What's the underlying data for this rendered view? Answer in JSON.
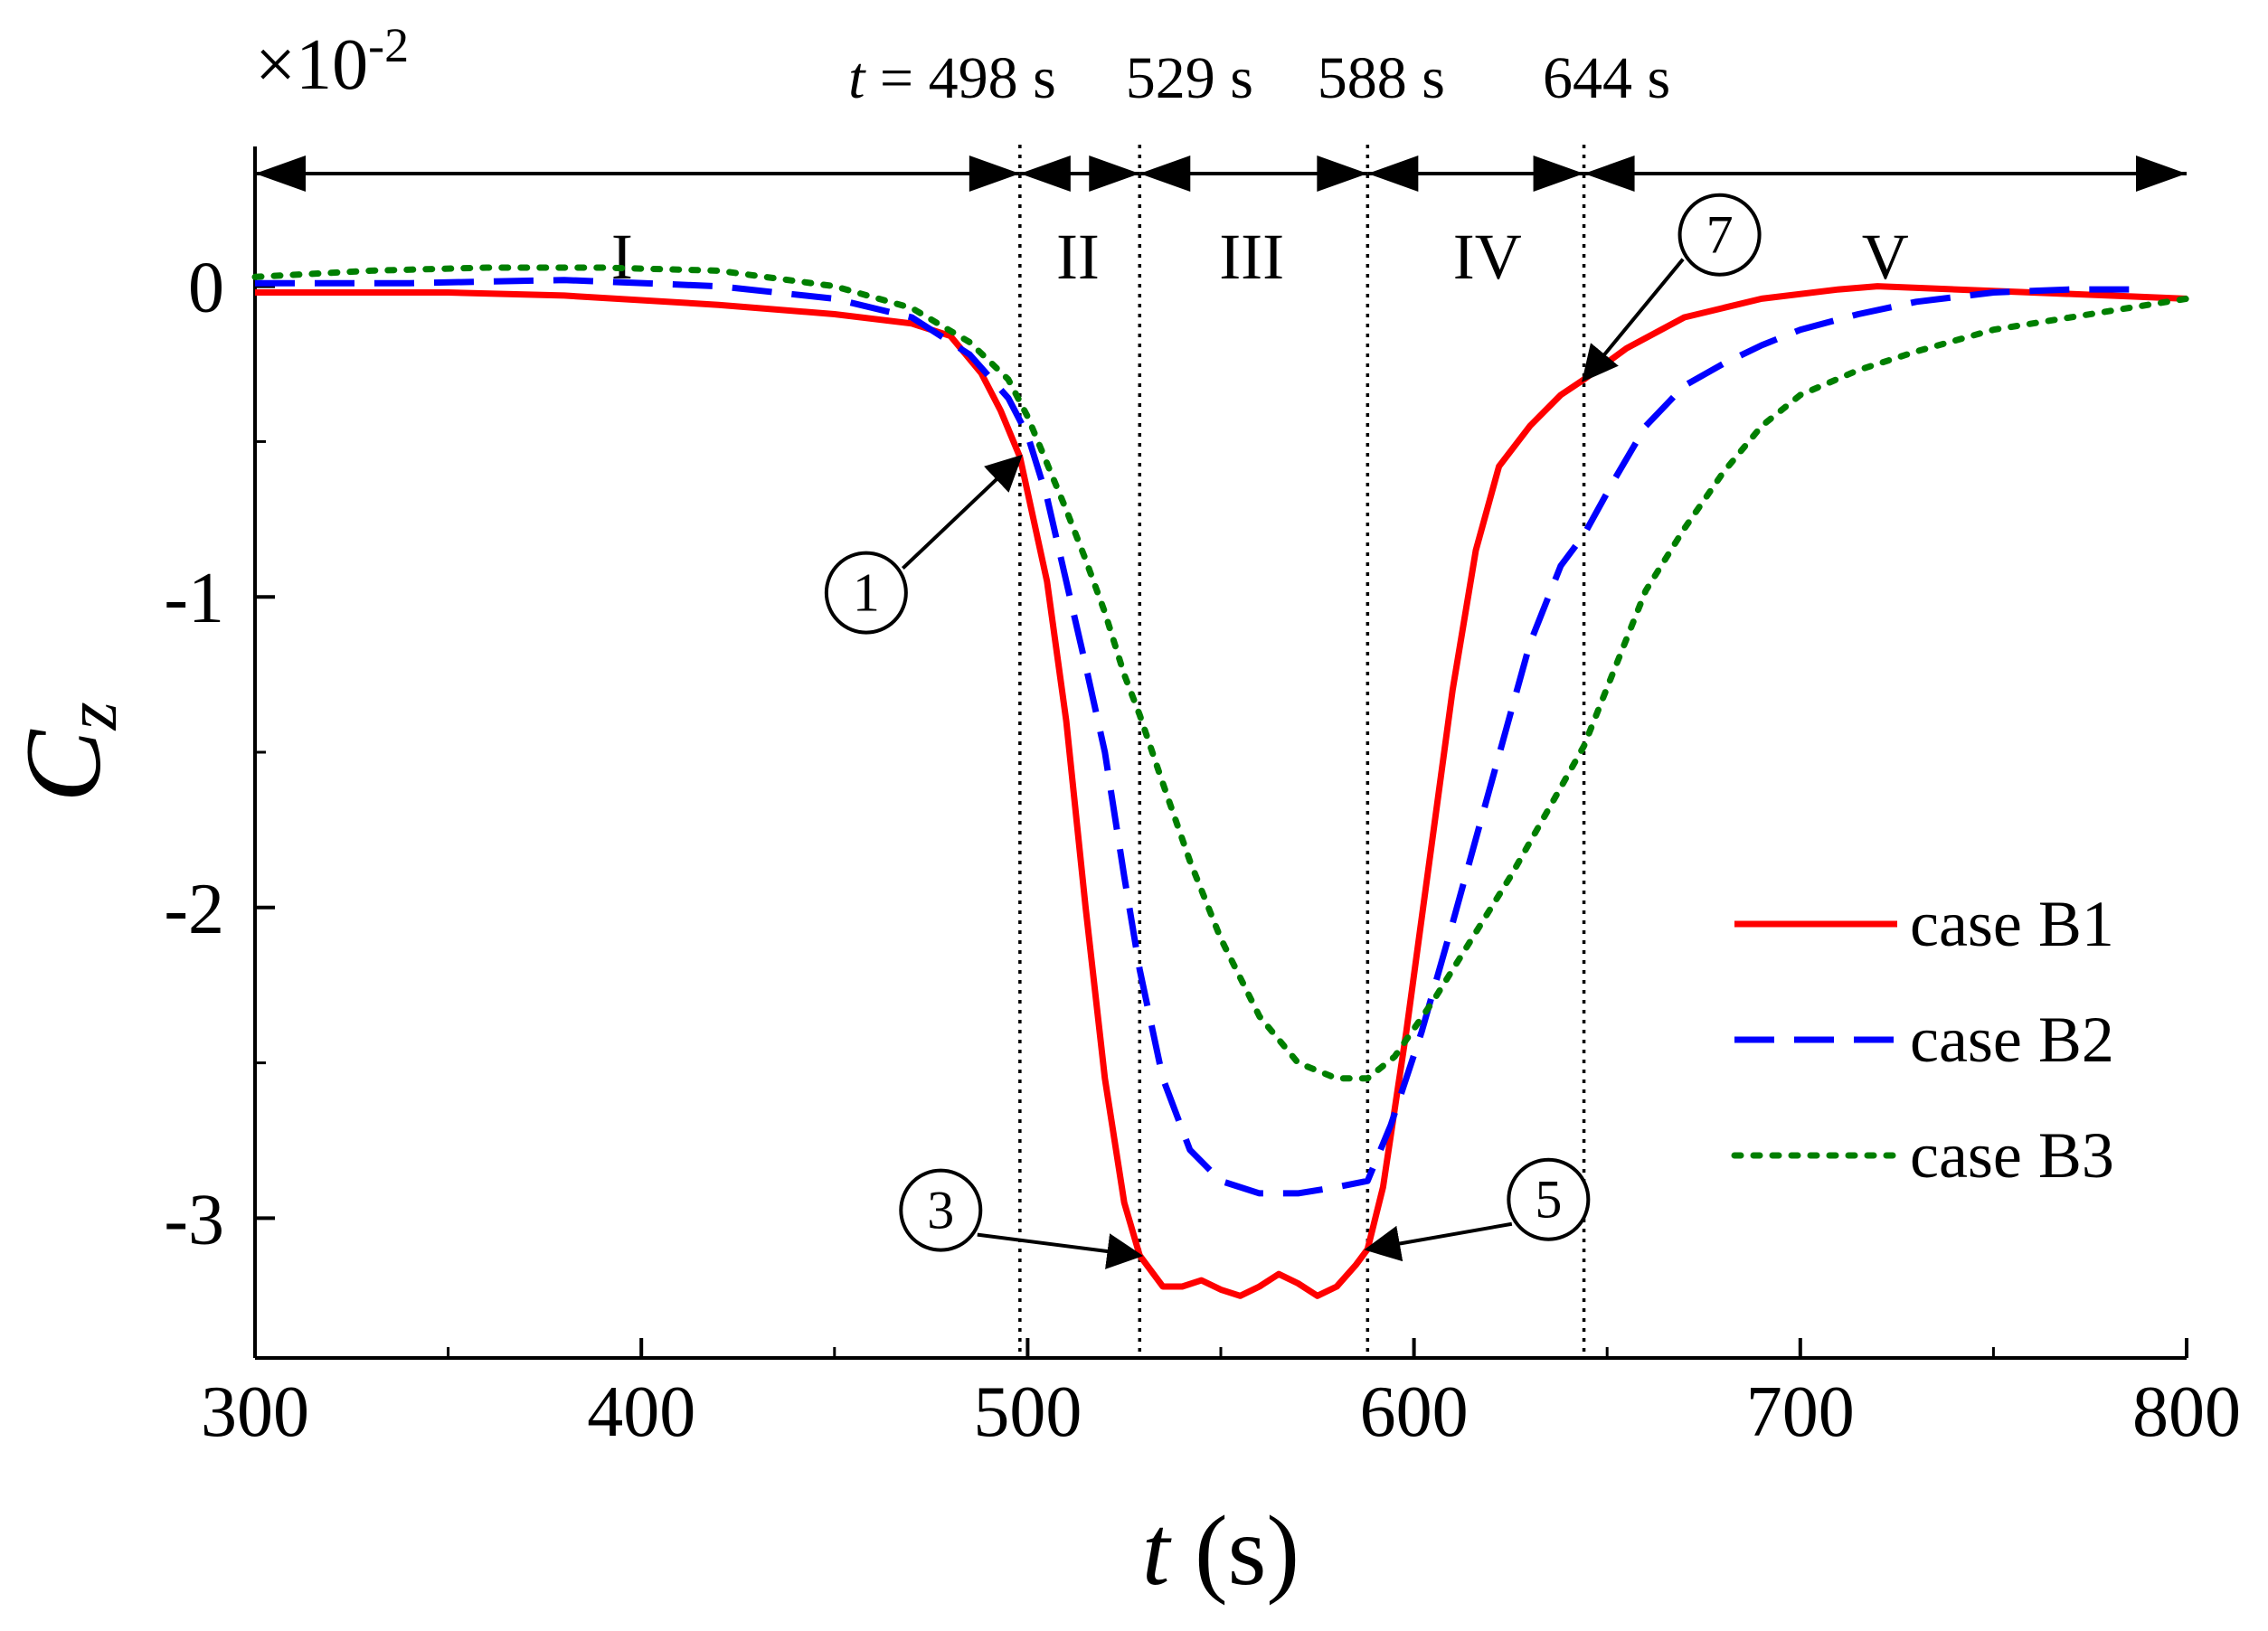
{
  "chart_data": {
    "type": "line",
    "xlabel": "t",
    "xlabel_unit": "(s)",
    "ylabel": "C",
    "ylabel_sub": "z",
    "scale_label": "×10",
    "scale_exponent": "-2",
    "xlim": [
      300,
      800
    ],
    "ylim": [
      -3.45,
      0.45
    ],
    "x_ticks": [
      300,
      400,
      500,
      600,
      700,
      800
    ],
    "x_tick_labels": [
      "300",
      "400",
      "500",
      "600",
      "700",
      "800"
    ],
    "y_ticks": [
      0,
      -1,
      -2,
      -3
    ],
    "y_tick_labels": [
      "0",
      "-1",
      "-2",
      "-3"
    ],
    "time_markers": [
      {
        "t": 498,
        "label": "498 s"
      },
      {
        "t": 529,
        "label": "529 s"
      },
      {
        "t": 588,
        "label": "588 s"
      },
      {
        "t": 644,
        "label": "644 s"
      }
    ],
    "time_prefix": "t",
    "time_equals": "=",
    "regions": [
      {
        "label": "I",
        "x": 395
      },
      {
        "label": "II",
        "x": 513
      },
      {
        "label": "III",
        "x": 558
      },
      {
        "label": "IV",
        "x": 619
      },
      {
        "label": "V",
        "x": 722
      }
    ],
    "legend_position": "bottom-right",
    "series": [
      {
        "name": "case B1",
        "color": "#ff0000",
        "style": "solid",
        "points": [
          [
            300,
            -0.02
          ],
          [
            350,
            -0.02
          ],
          [
            380,
            -0.03
          ],
          [
            420,
            -0.06
          ],
          [
            450,
            -0.09
          ],
          [
            470,
            -0.12
          ],
          [
            480,
            -0.16
          ],
          [
            488,
            -0.28
          ],
          [
            493,
            -0.4
          ],
          [
            498,
            -0.55
          ],
          [
            505,
            -0.95
          ],
          [
            510,
            -1.4
          ],
          [
            515,
            -2.0
          ],
          [
            520,
            -2.55
          ],
          [
            525,
            -2.95
          ],
          [
            529,
            -3.12
          ],
          [
            535,
            -3.22
          ],
          [
            540,
            -3.22
          ],
          [
            545,
            -3.2
          ],
          [
            550,
            -3.23
          ],
          [
            555,
            -3.25
          ],
          [
            560,
            -3.22
          ],
          [
            565,
            -3.18
          ],
          [
            570,
            -3.21
          ],
          [
            575,
            -3.25
          ],
          [
            580,
            -3.22
          ],
          [
            585,
            -3.15
          ],
          [
            588,
            -3.1
          ],
          [
            592,
            -2.9
          ],
          [
            598,
            -2.4
          ],
          [
            604,
            -1.85
          ],
          [
            610,
            -1.3
          ],
          [
            616,
            -0.85
          ],
          [
            622,
            -0.58
          ],
          [
            630,
            -0.45
          ],
          [
            638,
            -0.35
          ],
          [
            644,
            -0.3
          ],
          [
            655,
            -0.2
          ],
          [
            670,
            -0.1
          ],
          [
            690,
            -0.04
          ],
          [
            710,
            -0.01
          ],
          [
            720,
            0.0
          ],
          [
            740,
            -0.01
          ],
          [
            760,
            -0.02
          ],
          [
            780,
            -0.03
          ],
          [
            800,
            -0.04
          ]
        ]
      },
      {
        "name": "case B2",
        "color": "#0000ff",
        "style": "dashed",
        "points": [
          [
            300,
            0.01
          ],
          [
            340,
            0.01
          ],
          [
            380,
            0.02
          ],
          [
            420,
            0.0
          ],
          [
            450,
            -0.04
          ],
          [
            470,
            -0.1
          ],
          [
            485,
            -0.22
          ],
          [
            495,
            -0.36
          ],
          [
            500,
            -0.48
          ],
          [
            505,
            -0.68
          ],
          [
            510,
            -0.95
          ],
          [
            515,
            -1.22
          ],
          [
            520,
            -1.5
          ],
          [
            525,
            -1.9
          ],
          [
            529,
            -2.2
          ],
          [
            535,
            -2.55
          ],
          [
            542,
            -2.78
          ],
          [
            550,
            -2.88
          ],
          [
            560,
            -2.92
          ],
          [
            570,
            -2.92
          ],
          [
            580,
            -2.9
          ],
          [
            588,
            -2.88
          ],
          [
            594,
            -2.7
          ],
          [
            602,
            -2.4
          ],
          [
            610,
            -2.05
          ],
          [
            620,
            -1.6
          ],
          [
            630,
            -1.15
          ],
          [
            638,
            -0.9
          ],
          [
            644,
            -0.8
          ],
          [
            652,
            -0.62
          ],
          [
            660,
            -0.45
          ],
          [
            670,
            -0.32
          ],
          [
            680,
            -0.25
          ],
          [
            690,
            -0.19
          ],
          [
            700,
            -0.14
          ],
          [
            715,
            -0.09
          ],
          [
            730,
            -0.05
          ],
          [
            750,
            -0.02
          ],
          [
            770,
            -0.01
          ],
          [
            790,
            -0.01
          ]
        ]
      },
      {
        "name": "case B3",
        "color": "#007f00",
        "style": "dotted",
        "points": [
          [
            300,
            0.03
          ],
          [
            330,
            0.05
          ],
          [
            360,
            0.06
          ],
          [
            390,
            0.06
          ],
          [
            420,
            0.05
          ],
          [
            450,
            0.0
          ],
          [
            470,
            -0.07
          ],
          [
            485,
            -0.18
          ],
          [
            495,
            -0.3
          ],
          [
            500,
            -0.42
          ],
          [
            505,
            -0.57
          ],
          [
            510,
            -0.72
          ],
          [
            515,
            -0.88
          ],
          [
            520,
            -1.05
          ],
          [
            525,
            -1.25
          ],
          [
            529,
            -1.38
          ],
          [
            535,
            -1.6
          ],
          [
            542,
            -1.85
          ],
          [
            550,
            -2.1
          ],
          [
            560,
            -2.35
          ],
          [
            570,
            -2.5
          ],
          [
            580,
            -2.55
          ],
          [
            588,
            -2.55
          ],
          [
            595,
            -2.48
          ],
          [
            605,
            -2.3
          ],
          [
            615,
            -2.1
          ],
          [
            625,
            -1.9
          ],
          [
            635,
            -1.68
          ],
          [
            644,
            -1.48
          ],
          [
            652,
            -1.23
          ],
          [
            660,
            -0.98
          ],
          [
            670,
            -0.78
          ],
          [
            680,
            -0.6
          ],
          [
            690,
            -0.45
          ],
          [
            700,
            -0.35
          ],
          [
            715,
            -0.27
          ],
          [
            730,
            -0.21
          ],
          [
            750,
            -0.14
          ],
          [
            770,
            -0.1
          ],
          [
            790,
            -0.06
          ],
          [
            800,
            -0.04
          ]
        ]
      }
    ],
    "annotations": [
      {
        "label": "①",
        "x": 498,
        "y": -0.55
      },
      {
        "label": "③",
        "x": 529,
        "y": -3.12
      },
      {
        "label": "⑤",
        "x": 588,
        "y": -3.1
      },
      {
        "label": "⑦",
        "x": 644,
        "y": -0.3
      }
    ]
  }
}
